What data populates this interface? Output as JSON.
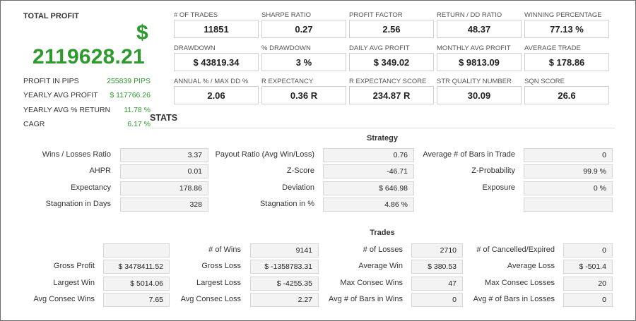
{
  "summary": {
    "title": "TOTAL PROFIT",
    "currency_symbol": "$",
    "total_profit": "2119628.21",
    "rows": [
      {
        "label": "PROFIT IN PIPS",
        "value": "255839 PIPS"
      },
      {
        "label": "YEARLY AVG PROFIT",
        "value": "$ 117766.26"
      },
      {
        "label": "YEARLY AVG % RETURN",
        "value": "11.78 %"
      },
      {
        "label": "CAGR",
        "value": "6.17 %"
      }
    ],
    "accent_color": "#2e9a2e"
  },
  "metrics": [
    {
      "label": "# OF TRADES",
      "value": "11851"
    },
    {
      "label": "SHARPE RATIO",
      "value": "0.27"
    },
    {
      "label": "PROFIT FACTOR",
      "value": "2.56"
    },
    {
      "label": "RETURN / DD RATIO",
      "value": "48.37"
    },
    {
      "label": "WINNING PERCENTAGE",
      "value": "77.13 %"
    },
    {
      "label": "DRAWDOWN",
      "value": "$ 43819.34"
    },
    {
      "label": "% DRAWDOWN",
      "value": "3 %"
    },
    {
      "label": "DAILY AVG PROFIT",
      "value": "$ 349.02"
    },
    {
      "label": "MONTHLY AVG PROFIT",
      "value": "$ 9813.09"
    },
    {
      "label": "AVERAGE TRADE",
      "value": "$ 178.86"
    },
    {
      "label": "ANNUAL % / MAX DD %",
      "value": "2.06"
    },
    {
      "label": "R EXPECTANCY",
      "value": "0.36 R"
    },
    {
      "label": "R EXPECTANCY SCORE",
      "value": "234.87 R"
    },
    {
      "label": "STR QUALITY NUMBER",
      "value": "30.09"
    },
    {
      "label": "SQN SCORE",
      "value": "26.6"
    }
  ],
  "stats": {
    "heading": "STATS",
    "strategy": {
      "heading": "Strategy",
      "rows": [
        [
          {
            "label": "Wins / Losses Ratio",
            "value": "3.37"
          },
          {
            "label": "Payout Ratio (Avg Win/Loss)",
            "value": "0.76"
          },
          {
            "label": "Average # of Bars in Trade",
            "value": "0"
          }
        ],
        [
          {
            "label": "AHPR",
            "value": "0.01"
          },
          {
            "label": "Z-Score",
            "value": "-46.71"
          },
          {
            "label": "Z-Probability",
            "value": "99.9 %"
          }
        ],
        [
          {
            "label": "Expectancy",
            "value": "178.86"
          },
          {
            "label": "Deviation",
            "value": "$ 646.98"
          },
          {
            "label": "Exposure",
            "value": "0 %"
          }
        ],
        [
          {
            "label": "Stagnation in Days",
            "value": "328"
          },
          {
            "label": "Stagnation in %",
            "value": "4.86 %"
          },
          {
            "label": "",
            "value": ""
          }
        ]
      ]
    },
    "trades": {
      "heading": "Trades",
      "rows": [
        [
          {
            "label": "",
            "value": ""
          },
          {
            "label": "# of Wins",
            "value": "9141"
          },
          {
            "label": "# of Losses",
            "value": "2710"
          },
          {
            "label": "# of Cancelled/Expired",
            "value": "0"
          }
        ],
        [
          {
            "label": "Gross Profit",
            "value": "$ 3478411.52"
          },
          {
            "label": "Gross Loss",
            "value": "$ -1358783.31"
          },
          {
            "label": "Average Win",
            "value": "$ 380.53"
          },
          {
            "label": "Average Loss",
            "value": "$ -501.4"
          }
        ],
        [
          {
            "label": "Largest Win",
            "value": "$ 5014.06"
          },
          {
            "label": "Largest Loss",
            "value": "$ -4255.35"
          },
          {
            "label": "Max Consec Wins",
            "value": "47"
          },
          {
            "label": "Max Consec Losses",
            "value": "20"
          }
        ],
        [
          {
            "label": "Avg Consec Wins",
            "value": "7.65"
          },
          {
            "label": "Avg Consec Loss",
            "value": "2.27"
          },
          {
            "label": "Avg # of Bars in Wins",
            "value": "0"
          },
          {
            "label": "Avg # of Bars in Losses",
            "value": "0"
          }
        ]
      ]
    }
  }
}
